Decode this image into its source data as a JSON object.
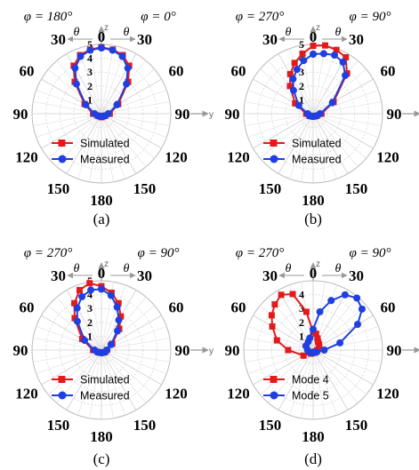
{
  "chart_data": [
    {
      "type": "polar-line",
      "panel_label": "(a)",
      "phi_left": "φ = 180°",
      "phi_right": "φ = 0°",
      "theta_symbol": "θ",
      "axis_z": "z",
      "axis_y": "y",
      "angle_labels": [
        "0",
        "30",
        "60",
        "90",
        "120",
        "150",
        "180",
        "150",
        "120",
        "90",
        "60",
        "30"
      ],
      "radial_ticks": [
        "1",
        "2",
        "3",
        "4",
        "5"
      ],
      "rlim": [
        0,
        5
      ],
      "grid": true,
      "legend_position": "bottom-center",
      "series": [
        {
          "name": "Simulated",
          "color": "#e31a1c",
          "marker": "square",
          "theta_deg": [
            0,
            10,
            20,
            30,
            40,
            60,
            90,
            120,
            150,
            180,
            -150,
            -120,
            -90,
            -60,
            -40,
            -30,
            -20,
            -10,
            0
          ],
          "r": [
            4.8,
            4.7,
            4.5,
            4.0,
            3.0,
            1.4,
            0.6,
            0.3,
            0.2,
            0.25,
            0.2,
            0.3,
            0.6,
            1.4,
            3.0,
            4.0,
            4.5,
            4.7,
            4.8
          ]
        },
        {
          "name": "Measured",
          "color": "#1f3fe0",
          "marker": "circle",
          "theta_deg": [
            0,
            10,
            20,
            30,
            40,
            60,
            90,
            120,
            150,
            180,
            -150,
            -120,
            -90,
            -60,
            -40,
            -30,
            -20,
            -10,
            0
          ],
          "r": [
            4.75,
            4.65,
            4.4,
            3.8,
            2.8,
            1.3,
            0.5,
            0.3,
            0.2,
            0.2,
            0.2,
            0.3,
            0.5,
            1.3,
            2.8,
            3.8,
            4.4,
            4.65,
            4.75
          ]
        }
      ]
    },
    {
      "type": "polar-line",
      "panel_label": "(b)",
      "phi_left": "φ = 270°",
      "phi_right": "φ = 90°",
      "theta_symbol": "θ",
      "axis_z": "z",
      "axis_y": "y",
      "angle_labels": [
        "0",
        "30",
        "60",
        "90",
        "120",
        "150",
        "180",
        "150",
        "120",
        "90",
        "60",
        "30"
      ],
      "radial_ticks": [
        "1",
        "2",
        "3",
        "4",
        "5"
      ],
      "rlim": [
        0,
        5
      ],
      "grid": true,
      "legend_position": "bottom-center",
      "series": [
        {
          "name": "Simulated",
          "color": "#e31a1c",
          "marker": "square",
          "theta_deg": [
            0,
            10,
            20,
            30,
            40,
            60,
            90,
            120,
            150,
            180,
            -150,
            -120,
            -90,
            -60,
            -40,
            -30,
            -20,
            -10,
            0
          ],
          "r": [
            4.9,
            5.0,
            4.9,
            4.7,
            3.8,
            1.7,
            0.6,
            0.3,
            0.2,
            0.2,
            0.2,
            0.3,
            0.5,
            1.5,
            2.6,
            3.3,
            3.9,
            4.4,
            4.9
          ]
        },
        {
          "name": "Measured",
          "color": "#1f3fe0",
          "marker": "circle",
          "theta_deg": [
            0,
            10,
            20,
            30,
            40,
            60,
            90,
            120,
            150,
            180,
            -150,
            -120,
            -90,
            -60,
            -40,
            -30,
            -20,
            -10,
            0
          ],
          "r": [
            4.3,
            4.4,
            4.5,
            4.3,
            3.6,
            1.6,
            0.5,
            0.3,
            0.2,
            0.2,
            0.2,
            0.3,
            0.4,
            1.2,
            2.2,
            2.9,
            3.4,
            3.9,
            4.3
          ]
        }
      ]
    },
    {
      "type": "polar-line",
      "panel_label": "(c)",
      "phi_left": "φ = 270°",
      "phi_right": "φ = 90°",
      "theta_symbol": "θ",
      "axis_z": "z",
      "axis_y": "y",
      "angle_labels": [
        "0",
        "30",
        "60",
        "90",
        "120",
        "150",
        "180",
        "150",
        "120",
        "90",
        "60",
        "30"
      ],
      "radial_ticks": [
        "1",
        "2",
        "3",
        "4",
        "5"
      ],
      "rlim": [
        0,
        5
      ],
      "grid": true,
      "legend_position": "bottom-center",
      "series": [
        {
          "name": "Simulated",
          "color": "#e31a1c",
          "marker": "square",
          "theta_deg": [
            0,
            10,
            20,
            30,
            40,
            60,
            90,
            120,
            150,
            180,
            -150,
            -120,
            -90,
            -60,
            -40,
            -30,
            -20,
            -10,
            0
          ],
          "r": [
            4.6,
            4.2,
            3.6,
            2.8,
            2.0,
            0.9,
            0.4,
            0.3,
            0.2,
            0.2,
            0.2,
            0.3,
            0.6,
            1.6,
            3.0,
            3.9,
            4.6,
            4.9,
            4.6
          ]
        },
        {
          "name": "Measured",
          "color": "#1f3fe0",
          "marker": "circle",
          "theta_deg": [
            0,
            10,
            20,
            30,
            40,
            60,
            90,
            120,
            150,
            180,
            -150,
            -120,
            -90,
            -60,
            -40,
            -30,
            -20,
            -10,
            0
          ],
          "r": [
            4.4,
            4.0,
            3.3,
            2.5,
            1.8,
            0.8,
            0.4,
            0.3,
            0.2,
            0.2,
            0.2,
            0.3,
            0.5,
            1.4,
            2.7,
            3.5,
            4.1,
            4.4,
            4.4
          ]
        }
      ]
    },
    {
      "type": "polar-line",
      "panel_label": "(d)",
      "phi_left": "φ = 270°",
      "phi_right": "φ = 90°",
      "theta_symbol": "θ",
      "axis_z": "z",
      "axis_y": "y",
      "angle_labels": [
        "0",
        "30",
        "60",
        "90",
        "120",
        "150",
        "180",
        "150",
        "120",
        "90",
        "60",
        "30"
      ],
      "radial_ticks": [
        "1",
        "2",
        "3",
        "4"
      ],
      "rlim": [
        0,
        5
      ],
      "grid": true,
      "legend_position": "bottom-center",
      "series": [
        {
          "name": "Mode 4",
          "color": "#e31a1c",
          "marker": "square",
          "theta_deg": [
            0,
            10,
            20,
            30,
            45,
            60,
            90,
            120,
            150,
            180,
            -150,
            -120,
            -90,
            -75,
            -60,
            -50,
            -40,
            -30,
            -20,
            -10,
            0
          ],
          "r": [
            1.3,
            1.2,
            0.9,
            0.7,
            0.6,
            0.5,
            0.3,
            0.2,
            0.2,
            0.2,
            0.3,
            0.8,
            1.8,
            2.7,
            3.4,
            3.9,
            4.3,
            4.6,
            4.3,
            2.8,
            1.3
          ]
        },
        {
          "name": "Mode 5",
          "color": "#1f3fe0",
          "marker": "circle",
          "theta_deg": [
            -60,
            -30,
            -15,
            0,
            10,
            20,
            30,
            40,
            50,
            60,
            75,
            90,
            120,
            150,
            180,
            -150,
            -120,
            -90,
            -60
          ],
          "r": [
            0.6,
            0.7,
            0.9,
            1.5,
            2.8,
            3.8,
            4.6,
            4.9,
            4.6,
            3.7,
            2.0,
            0.8,
            0.3,
            0.2,
            0.2,
            0.2,
            0.3,
            0.4,
            0.6
          ]
        }
      ]
    }
  ]
}
